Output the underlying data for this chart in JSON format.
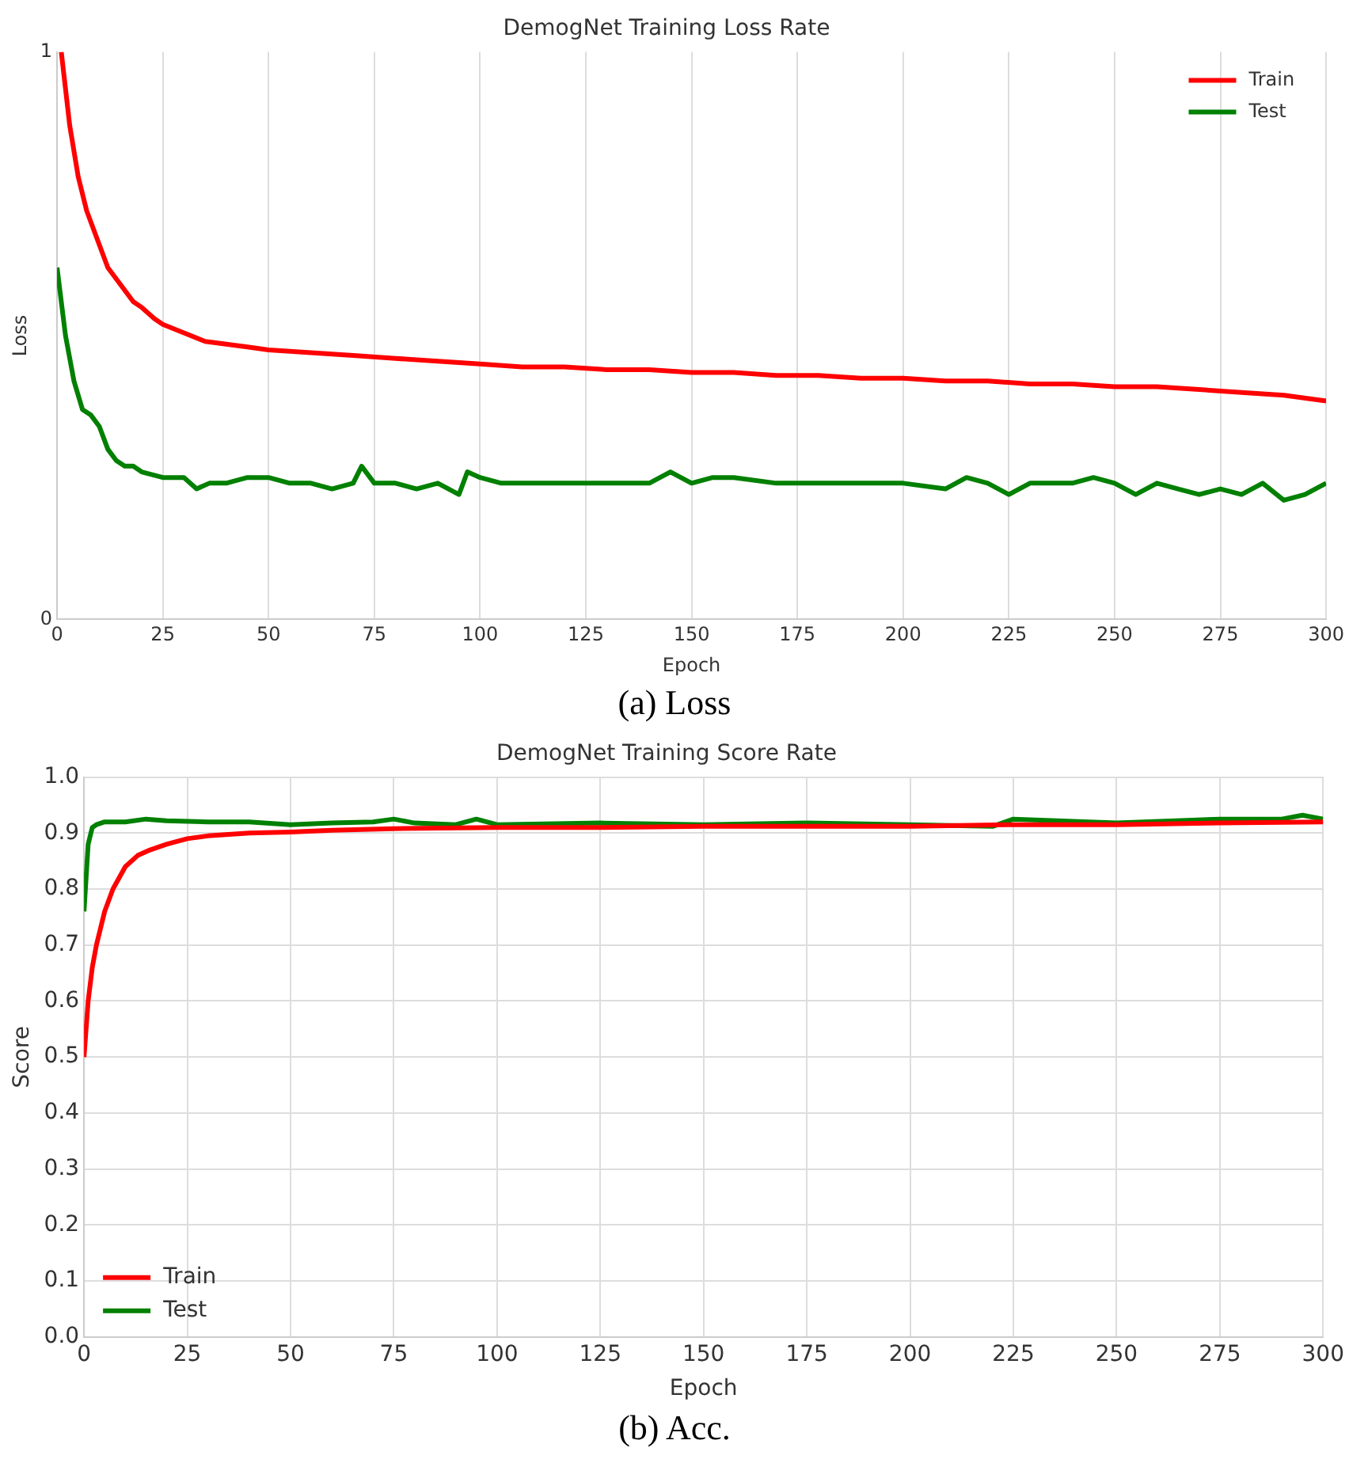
{
  "chart_data": [
    {
      "type": "line",
      "title": "DemogNet Training Loss Rate",
      "xlabel": "Epoch",
      "ylabel": "Loss",
      "xlim": [
        0,
        300
      ],
      "xticks": [
        0,
        25,
        50,
        75,
        100,
        125,
        150,
        175,
        200,
        225,
        250,
        275,
        300
      ],
      "ylim": [
        0,
        1
      ],
      "yticks": [
        0,
        1
      ],
      "grid": "x",
      "legend": "top right",
      "annotations": [
        "(a) Loss"
      ],
      "series": [
        {
          "name": "Train",
          "color": "#ff0000",
          "x": [
            1,
            3,
            5,
            7,
            9,
            12,
            15,
            18,
            20,
            23,
            25,
            30,
            35,
            40,
            45,
            50,
            60,
            70,
            80,
            90,
            100,
            110,
            120,
            130,
            140,
            150,
            160,
            170,
            180,
            190,
            200,
            210,
            220,
            230,
            240,
            250,
            260,
            270,
            280,
            290,
            300
          ],
          "values": [
            1.0,
            0.87,
            0.78,
            0.72,
            0.68,
            0.62,
            0.59,
            0.56,
            0.55,
            0.53,
            0.52,
            0.505,
            0.49,
            0.485,
            0.48,
            0.475,
            0.47,
            0.465,
            0.46,
            0.455,
            0.45,
            0.445,
            0.445,
            0.44,
            0.44,
            0.435,
            0.435,
            0.43,
            0.43,
            0.425,
            0.425,
            0.42,
            0.42,
            0.415,
            0.415,
            0.41,
            0.41,
            0.405,
            0.4,
            0.395,
            0.385
          ]
        },
        {
          "name": "Test",
          "color": "#008000",
          "x": [
            0,
            2,
            4,
            6,
            8,
            10,
            12,
            14,
            16,
            18,
            20,
            25,
            30,
            33,
            36,
            40,
            45,
            50,
            55,
            60,
            65,
            70,
            72,
            75,
            80,
            85,
            90,
            95,
            97,
            100,
            105,
            110,
            120,
            130,
            140,
            145,
            150,
            155,
            160,
            170,
            180,
            190,
            200,
            210,
            215,
            220,
            225,
            230,
            240,
            245,
            250,
            255,
            260,
            265,
            270,
            275,
            280,
            285,
            290,
            295,
            300
          ],
          "values": [
            0.62,
            0.5,
            0.42,
            0.37,
            0.36,
            0.34,
            0.3,
            0.28,
            0.27,
            0.27,
            0.26,
            0.25,
            0.25,
            0.23,
            0.24,
            0.24,
            0.25,
            0.25,
            0.24,
            0.24,
            0.23,
            0.24,
            0.27,
            0.24,
            0.24,
            0.23,
            0.24,
            0.22,
            0.26,
            0.25,
            0.24,
            0.24,
            0.24,
            0.24,
            0.24,
            0.26,
            0.24,
            0.25,
            0.25,
            0.24,
            0.24,
            0.24,
            0.24,
            0.23,
            0.25,
            0.24,
            0.22,
            0.24,
            0.24,
            0.25,
            0.24,
            0.22,
            0.24,
            0.23,
            0.22,
            0.23,
            0.22,
            0.24,
            0.21,
            0.22,
            0.24
          ]
        }
      ]
    },
    {
      "type": "line",
      "title": "DemogNet Training Score Rate",
      "xlabel": "Epoch",
      "ylabel": "Score",
      "xlim": [
        0,
        300
      ],
      "xticks": [
        0,
        25,
        50,
        75,
        100,
        125,
        150,
        175,
        200,
        225,
        250,
        275,
        300
      ],
      "ylim": [
        0,
        1
      ],
      "yticks": [
        {
          "value": 0,
          "label": "0.0"
        },
        0.1,
        0.2,
        0.3,
        0.4,
        0.5,
        0.6,
        0.7,
        0.8,
        0.9,
        {
          "value": 1,
          "label": "1.0"
        }
      ],
      "grid": true,
      "legend": "bottom left",
      "annotations": [
        "(b) Acc."
      ],
      "series": [
        {
          "name": "Train",
          "color": "#ff0000",
          "x": [
            0,
            1,
            2,
            3,
            5,
            7,
            10,
            13,
            16,
            20,
            25,
            30,
            40,
            50,
            60,
            75,
            100,
            125,
            150,
            175,
            200,
            225,
            250,
            275,
            300
          ],
          "values": [
            0.5,
            0.6,
            0.66,
            0.7,
            0.76,
            0.8,
            0.84,
            0.86,
            0.87,
            0.88,
            0.89,
            0.895,
            0.9,
            0.902,
            0.905,
            0.908,
            0.91,
            0.91,
            0.912,
            0.912,
            0.912,
            0.915,
            0.915,
            0.918,
            0.92
          ]
        },
        {
          "name": "Test",
          "color": "#008000",
          "x": [
            0,
            1,
            2,
            3,
            5,
            10,
            15,
            20,
            30,
            40,
            50,
            60,
            70,
            75,
            80,
            90,
            95,
            100,
            125,
            150,
            175,
            200,
            220,
            225,
            250,
            275,
            290,
            295,
            300
          ],
          "values": [
            0.76,
            0.88,
            0.91,
            0.915,
            0.92,
            0.92,
            0.925,
            0.922,
            0.92,
            0.92,
            0.915,
            0.918,
            0.92,
            0.925,
            0.918,
            0.915,
            0.925,
            0.915,
            0.918,
            0.915,
            0.918,
            0.915,
            0.912,
            0.925,
            0.918,
            0.925,
            0.925,
            0.932,
            0.925
          ]
        }
      ]
    }
  ]
}
